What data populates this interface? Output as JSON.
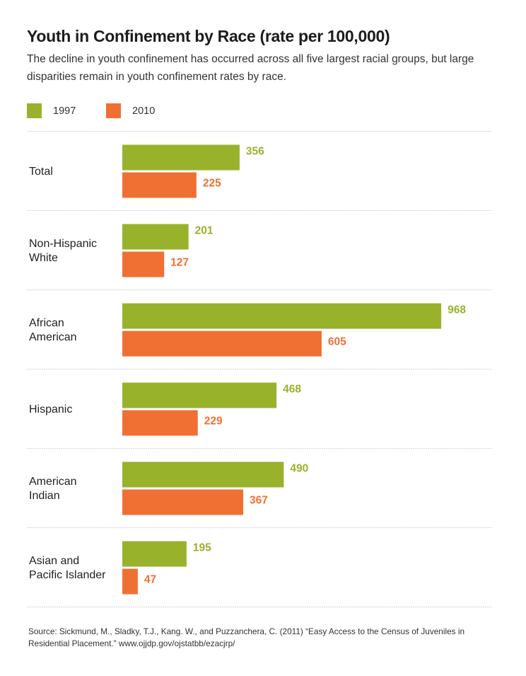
{
  "chart_data": {
    "type": "bar",
    "orientation": "horizontal",
    "title": "Youth in Confinement by Race (rate per 100,000)",
    "subtitle": "The decline in youth confinement has occurred across all five largest racial groups, but large disparities remain in youth confinement rates by race.",
    "xlabel": "",
    "ylabel": "",
    "xlim": [
      0,
      1000
    ],
    "grid": "horizontal separators between categories",
    "legend_position": "top-left",
    "categories": [
      [
        "Total"
      ],
      [
        "Non-Hispanic",
        "White"
      ],
      [
        "African",
        "American"
      ],
      [
        "Hispanic"
      ],
      [
        "American",
        "Indian"
      ],
      [
        "Asian and",
        "Pacific Islander"
      ]
    ],
    "series": [
      {
        "name": "1997",
        "color": "#98b22c",
        "values": [
          356,
          201,
          968,
          468,
          490,
          195
        ]
      },
      {
        "name": "2010",
        "color": "#f07034",
        "values": [
          225,
          127,
          605,
          229,
          367,
          47
        ]
      }
    ]
  },
  "source": "Source: Sickmund, M., Sladky, T.J., Kang. W., and Puzzanchera, C. (2011) “Easy Access to the Census of Juveniles in Residential Placement.” www.ojjdp.gov/ojstatbb/ezacjrp/"
}
